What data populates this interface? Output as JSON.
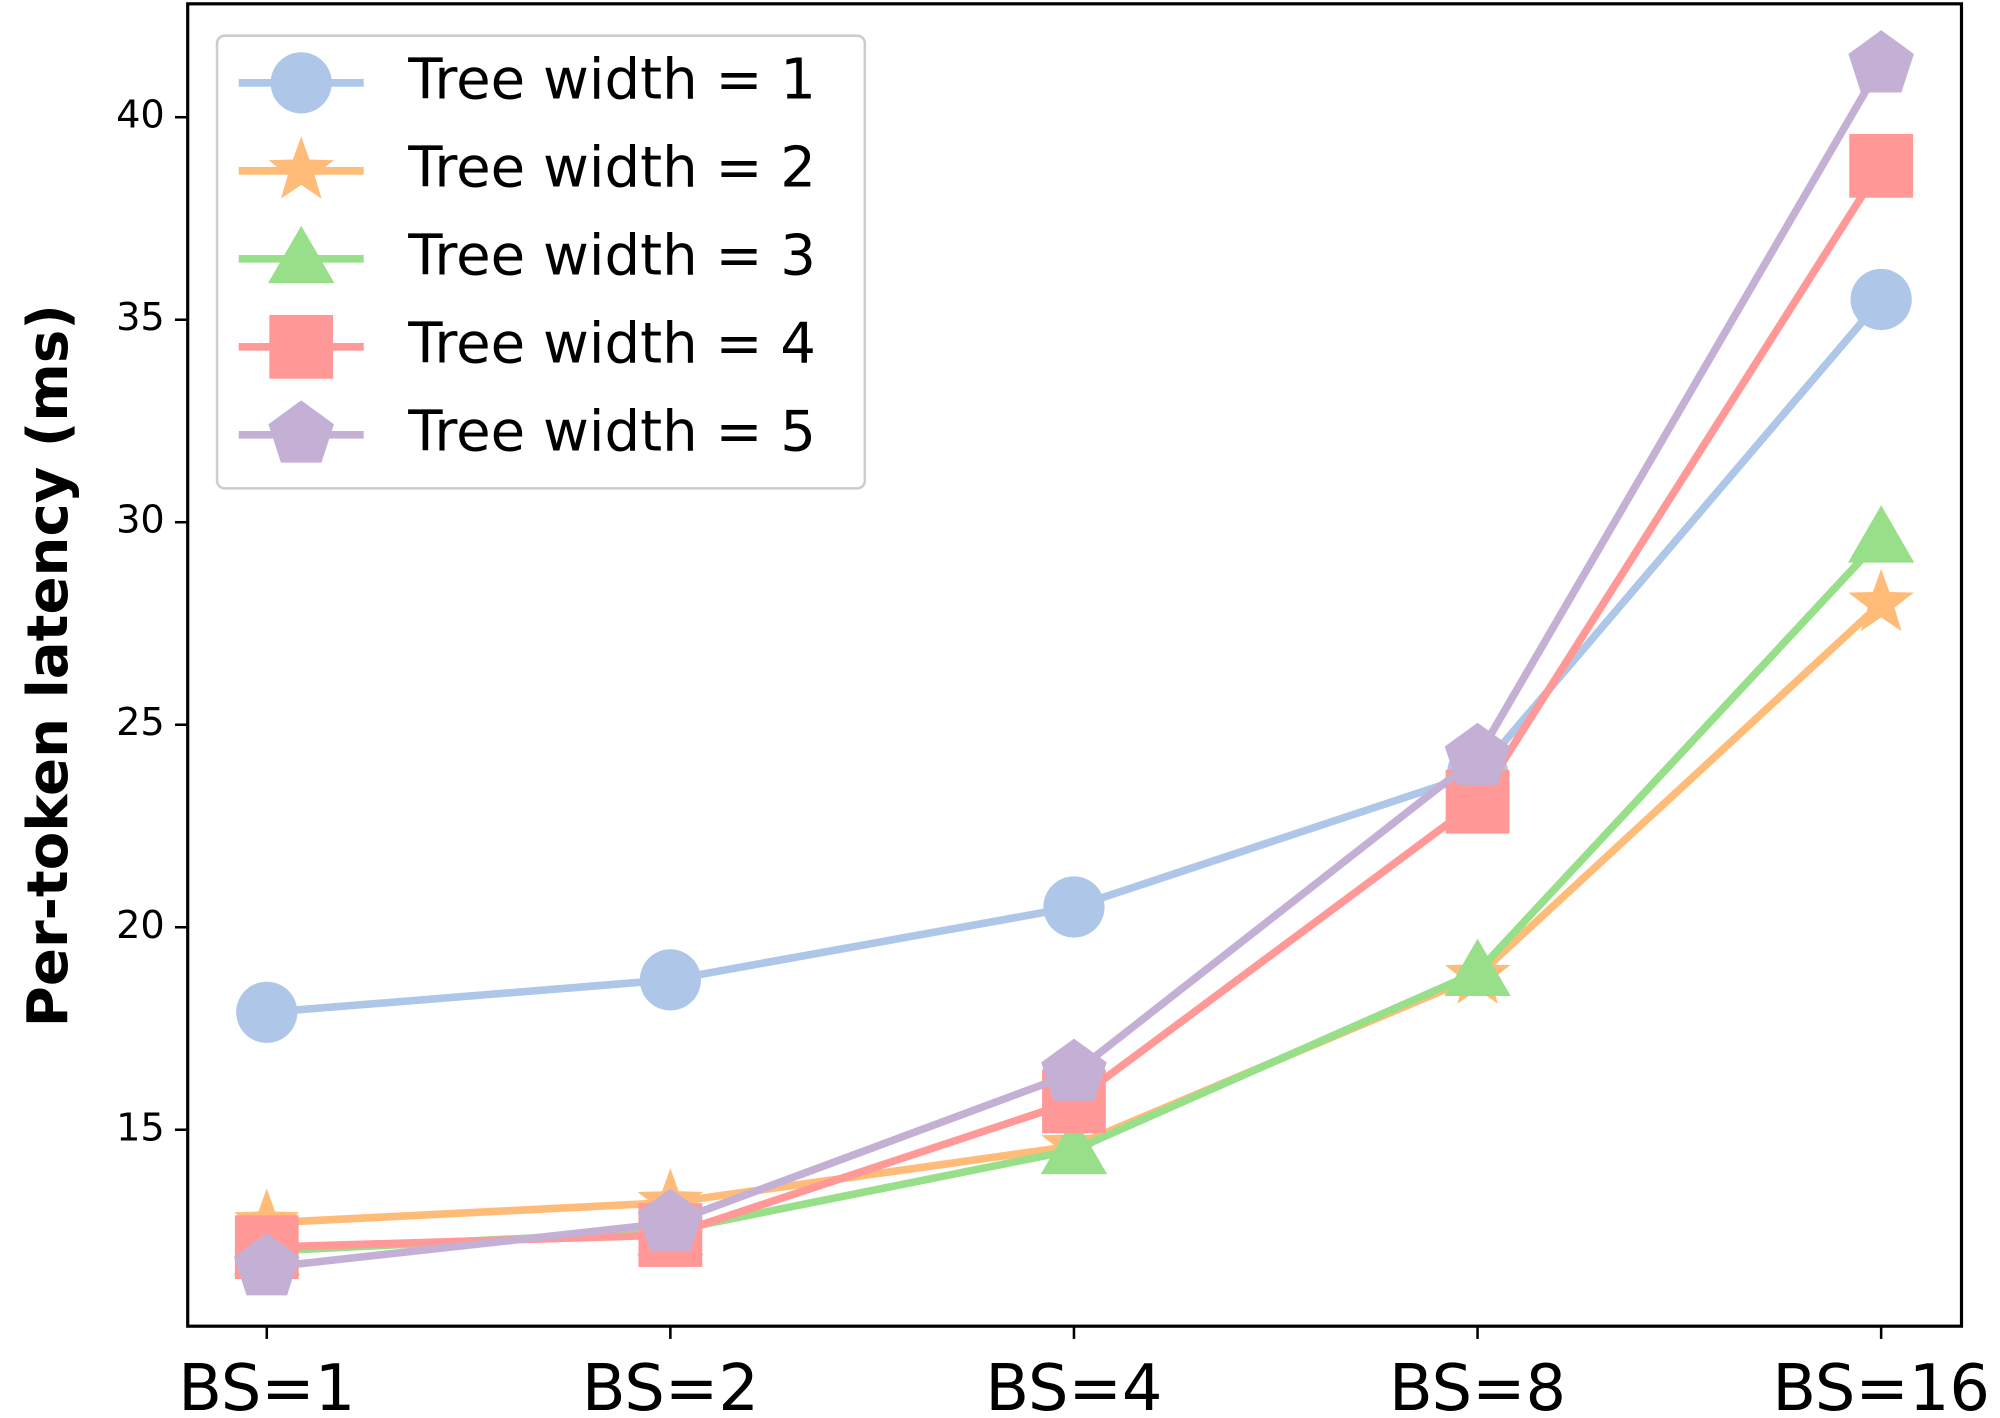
{
  "chart_data": {
    "type": "line",
    "y_label": "Per-token latency (ms)",
    "categories": [
      "BS=1",
      "BS=2",
      "BS=4",
      "BS=8",
      "BS=16"
    ],
    "series": [
      {
        "name": "Tree width = 1",
        "color": "#aec7e8",
        "marker": "circle",
        "values": [
          17.9,
          18.7,
          20.5,
          23.8,
          35.5
        ]
      },
      {
        "name": "Tree width = 2",
        "color": "#ffbb78",
        "marker": "star",
        "values": [
          12.7,
          13.2,
          14.6,
          18.8,
          28.0
        ]
      },
      {
        "name": "Tree width = 3",
        "color": "#98df8a",
        "marker": "triangle",
        "values": [
          12.0,
          12.5,
          14.5,
          18.9,
          29.6
        ]
      },
      {
        "name": "Tree width = 4",
        "color": "#ff9896",
        "marker": "square",
        "values": [
          12.1,
          12.4,
          15.7,
          23.1,
          38.8
        ]
      },
      {
        "name": "Tree width = 5",
        "color": "#c5b0d5",
        "marker": "pentagon",
        "values": [
          11.6,
          12.7,
          16.4,
          24.2,
          41.3
        ]
      }
    ],
    "ylim": [
      10.15,
      42.8
    ],
    "yticks": [
      15,
      20,
      25,
      30,
      35,
      40
    ],
    "legend": "upper left",
    "grid": false
  }
}
